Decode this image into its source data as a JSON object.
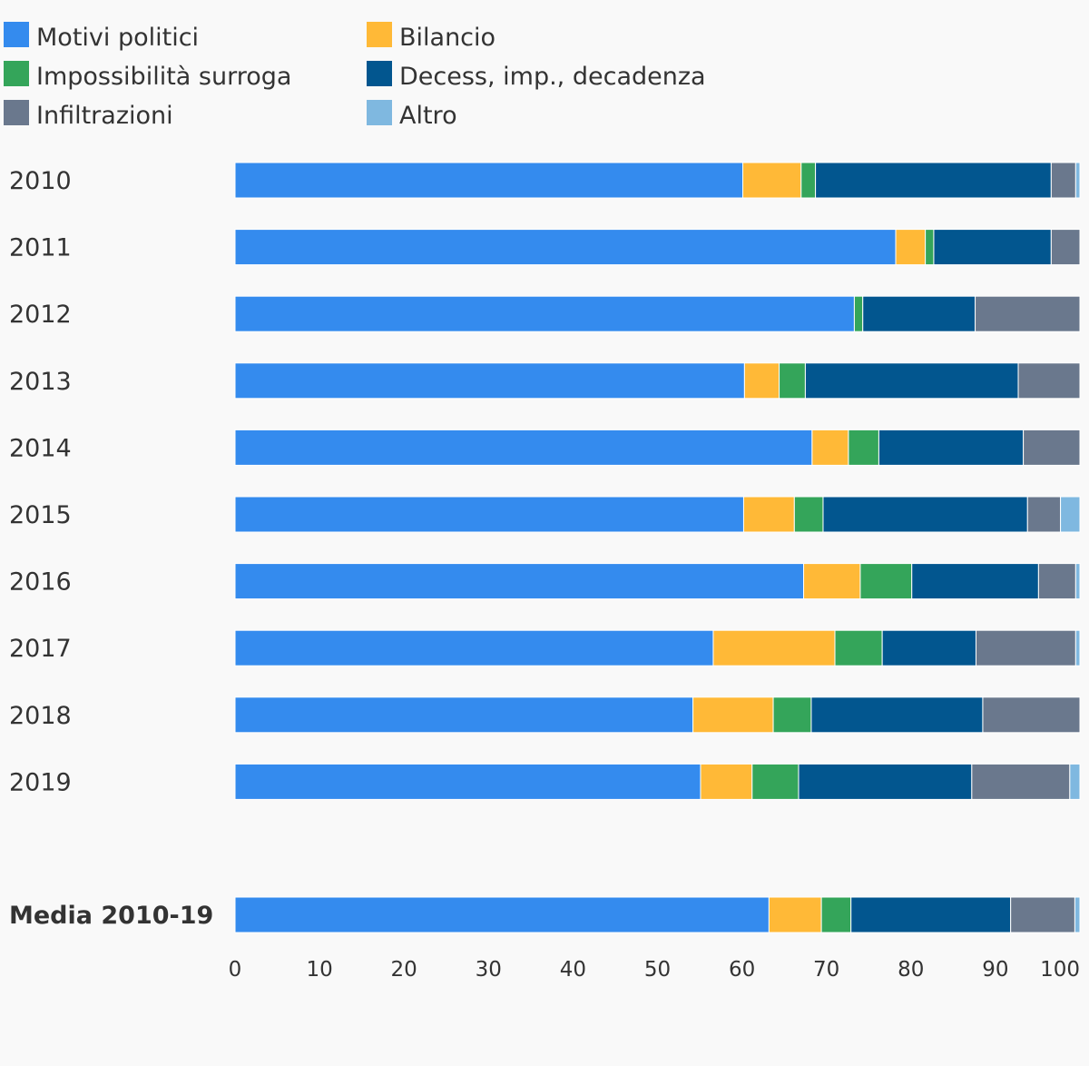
{
  "chart_data": {
    "type": "bar",
    "orientation": "horizontal",
    "stacked": true,
    "categories": [
      "2010",
      "2011",
      "2012",
      "2013",
      "2014",
      "2015",
      "2016",
      "2017",
      "2018",
      "2019",
      "Media 2010-19"
    ],
    "series": [
      {
        "name": "Motivi politici",
        "color": "#348bee",
        "values": [
          60.1,
          78.2,
          73.3,
          60.3,
          68.3,
          60.2,
          67.3,
          56.6,
          54.2,
          55.1,
          63.2
        ]
      },
      {
        "name": "Bilancio",
        "color": "#ffb937",
        "values": [
          6.9,
          3.5,
          0.0,
          4.1,
          4.3,
          6.0,
          6.7,
          14.4,
          9.5,
          6.1,
          6.2
        ]
      },
      {
        "name": "Impossibilità surroga",
        "color": "#34a55a",
        "values": [
          1.7,
          1.0,
          1.0,
          3.1,
          3.6,
          3.4,
          6.1,
          5.6,
          4.5,
          5.5,
          3.5
        ]
      },
      {
        "name": "Decess, imp., decadenza",
        "color": "#02568f",
        "values": [
          27.9,
          13.9,
          13.3,
          25.2,
          17.1,
          24.2,
          15.0,
          11.1,
          20.3,
          20.5,
          18.9
        ]
      },
      {
        "name": "Infiltrazioni",
        "color": "#6a788d",
        "values": [
          2.9,
          3.4,
          12.4,
          7.3,
          6.7,
          3.9,
          4.4,
          11.8,
          11.5,
          11.6,
          7.6
        ]
      },
      {
        "name": "Altro",
        "color": "#7fb8e0",
        "values": [
          0.5,
          0.0,
          0.0,
          0.0,
          0.0,
          2.3,
          0.5,
          0.5,
          0.0,
          1.2,
          0.6
        ]
      }
    ],
    "bold_categories": [
      "Media 2010-19"
    ],
    "xlim": [
      0,
      100
    ],
    "xticks": [
      0,
      10,
      20,
      30,
      40,
      50,
      60,
      70,
      80,
      90,
      100
    ],
    "grid": false,
    "legend_position": "top-left"
  }
}
